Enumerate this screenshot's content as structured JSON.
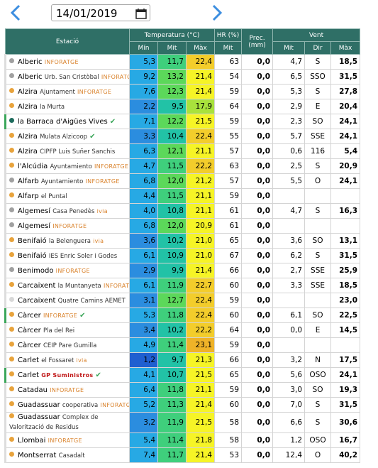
{
  "header": {
    "date": "14/01/2019"
  },
  "table": {
    "groups": [
      "Estació",
      "Temperatura (°C)",
      "HR (%)",
      "Prec. (mm)",
      "Vent"
    ],
    "subheaders": [
      "Mín",
      "Mit",
      "Màx",
      "Mit",
      "Mit",
      "Dir",
      "Màx"
    ],
    "rows": [
      {
        "station": "Alberic",
        "tag": "INFORATGE",
        "dot": "#a0a0a0",
        "cells": [
          "5,3",
          "11,7",
          "22,4",
          "63",
          "0,0",
          "4,7",
          "S",
          "18,5"
        ]
      },
      {
        "station": "Alberic",
        "detail": "Urb. San Cristòbal",
        "tag": "INFORATGE",
        "dot": "#a0a0a0",
        "cells": [
          "9,2",
          "13,2",
          "21,4",
          "54",
          "0,0",
          "6,5",
          "SSO",
          "31,5"
        ]
      },
      {
        "station": "Alzira",
        "detail": "Ajuntament",
        "tag": "INFORATGE",
        "dot": "#e8a33c",
        "cells": [
          "7,6",
          "12,3",
          "21,4",
          "59",
          "0,0",
          "5,3",
          "S",
          "27,8"
        ]
      },
      {
        "station": "Alzira",
        "detail": "la Murta",
        "dot": "#e8a33c",
        "cells": [
          "2,2",
          "9,5",
          "17,9",
          "64",
          "0,0",
          "2,9",
          "E",
          "20,4"
        ]
      },
      {
        "station": "la Barraca d'Aigües Vives",
        "dot": "#1e6b5c",
        "check": true,
        "highlight": true,
        "cells": [
          "7,1",
          "12,2",
          "21,5",
          "59",
          "0,0",
          "2,3",
          "SO",
          "24,1"
        ]
      },
      {
        "station": "Alzira",
        "detail": "Mulata Alzicoop",
        "dot": "#e8a33c",
        "check": true,
        "cells": [
          "3,3",
          "10,4",
          "22,4",
          "55",
          "0,0",
          "5,7",
          "SSE",
          "24,1"
        ]
      },
      {
        "station": "Alzira",
        "detail": "CIPFP Luis Suñer Sanchis",
        "dot": "#e8a33c",
        "cells": [
          "6,3",
          "12,1",
          "21,1",
          "57",
          "0,0",
          "0,6",
          "116",
          "5,4"
        ]
      },
      {
        "station": "l'Alcúdia",
        "detail": "Ayuntamiento",
        "tag": "INFORATGE",
        "dot": "#e8a33c",
        "cells": [
          "4,7",
          "11,5",
          "22,2",
          "63",
          "0,0",
          "2,5",
          "S",
          "20,9"
        ]
      },
      {
        "station": "Alfarb",
        "detail": "Ayuntamiento",
        "tag": "INFORATGE",
        "dot": "#a0a0a0",
        "cells": [
          "6,8",
          "12,0",
          "21,2",
          "57",
          "0,0",
          "5,5",
          "O",
          "24,1"
        ]
      },
      {
        "station": "Alfarp",
        "detail": "el Puntal",
        "dot": "#e8a33c",
        "cells": [
          "4,4",
          "11,5",
          "21,1",
          "59",
          "0,0",
          null,
          null,
          null
        ]
      },
      {
        "station": "Algemesí",
        "detail": "Casa Penedès",
        "tag": "ivia",
        "dot": "#a0a0a0",
        "cells": [
          "4,0",
          "10,8",
          "21,1",
          "61",
          "0,0",
          "4,7",
          "S",
          "16,3"
        ]
      },
      {
        "station": "Algemesí",
        "tag": "INFORATGE",
        "dot": "#a0a0a0",
        "cells": [
          "6,8",
          "12,0",
          "20,9",
          "61",
          "0,0",
          null,
          null,
          null
        ]
      },
      {
        "station": "Benifaió",
        "detail": "la Belenguera",
        "tag": "ivia",
        "dot": "#e8a33c",
        "cells": [
          "3,6",
          "10,2",
          "21,0",
          "65",
          "0,0",
          "3,6",
          "SO",
          "13,1"
        ]
      },
      {
        "station": "Benifaió",
        "detail": "IES Enric Soler i Godes",
        "dot": "#e8a33c",
        "cells": [
          "6,1",
          "10,9",
          "21,0",
          "67",
          "0,0",
          "6,2",
          "S",
          "31,5"
        ]
      },
      {
        "station": "Benimodo",
        "tag": "INFORATGE",
        "dot": "#a0a0a0",
        "cells": [
          "2,9",
          "9,9",
          "21,4",
          "66",
          "0,0",
          "2,7",
          "SSE",
          "25,9"
        ]
      },
      {
        "station": "Carcaixent",
        "detail": "la Muntanyeta",
        "tag": "INFORATGE",
        "dot": "#e8a33c",
        "cells": [
          "6,1",
          "11,9",
          "22,7",
          "60",
          "0,0",
          "3,3",
          "SSE",
          "18,5"
        ]
      },
      {
        "station": "Carcaixent",
        "detail": "Quatre Camins AEMET",
        "dot": "#d8d8d8",
        "cells": [
          "3,1",
          "12,7",
          "22,4",
          "59",
          "0,0",
          null,
          null,
          "23,0"
        ]
      },
      {
        "station": "Càrcer",
        "tag": "INFORATGE",
        "dot": "#e8a33c",
        "check": true,
        "highlight": true,
        "cells": [
          "5,3",
          "11,8",
          "22,4",
          "60",
          "0,0",
          "6,1",
          "SO",
          "22,5"
        ]
      },
      {
        "station": "Càrcer",
        "detail": "Pla del Rei",
        "dot": "#e8a33c",
        "cells": [
          "3,4",
          "10,2",
          "22,2",
          "64",
          "0,0",
          "0,0",
          "E",
          "14,5"
        ]
      },
      {
        "station": "Càrcer",
        "detail": "CEIP Pare Gumilla",
        "dot": "#e8a33c",
        "cells": [
          "4,9",
          "11,4",
          "23,1",
          "59",
          "0,0",
          null,
          null,
          null
        ]
      },
      {
        "station": "Carlet",
        "detail": "el Fossaret",
        "tag": "ivia",
        "dot": "#e8a33c",
        "cells": [
          "1,2",
          "9,7",
          "21,3",
          "66",
          "0,0",
          "3,2",
          "N",
          "17,5"
        ]
      },
      {
        "station": "Carlet",
        "tag": "GP Suministros",
        "dot": "#e8a33c",
        "check": true,
        "highlight": true,
        "cells": [
          "4,1",
          "10,7",
          "21,5",
          "65",
          "0,0",
          "5,6",
          "OSO",
          "24,1"
        ]
      },
      {
        "station": "Catadau",
        "tag": "INFORATGE",
        "dot": "#e8a33c",
        "cells": [
          "6,4",
          "11,8",
          "21,1",
          "59",
          "0,0",
          "3,0",
          "SO",
          "19,3"
        ]
      },
      {
        "station": "Guadassuar",
        "detail": "cooperativa",
        "tag": "INFORATGE",
        "dot": "#e8a33c",
        "cells": [
          "5,2",
          "11,3",
          "21,4",
          "60",
          "0,0",
          "7,0",
          "S",
          "31,5"
        ]
      },
      {
        "station": "Guadassuar",
        "detail": "Complex de Valorització de Residus",
        "dot": "#e8a33c",
        "cells": [
          "3,2",
          "11,9",
          "21,5",
          "58",
          "0,0",
          "6,6",
          "S",
          "30,6"
        ]
      },
      {
        "station": "Llombai",
        "tag": "INFORATGE",
        "dot": "#e8a33c",
        "cells": [
          "5,4",
          "11,4",
          "21,8",
          "58",
          "0,0",
          "1,2",
          "OSO",
          "16,7"
        ]
      },
      {
        "station": "Montserrat",
        "detail": "Casadalt",
        "dot": "#e8a33c",
        "cells": [
          "7,4",
          "11,7",
          "21,4",
          "53",
          "0,0",
          "12,4",
          "O",
          "40,2"
        ]
      }
    ]
  }
}
